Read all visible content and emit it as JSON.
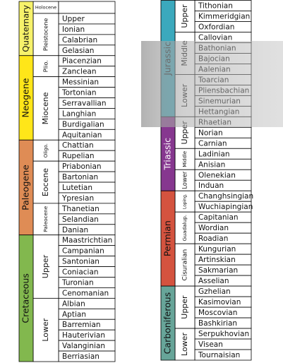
{
  "left": {
    "periods": [
      {
        "name": "Quaternary",
        "color": "#f7f26b",
        "epochs": [
          {
            "name": "Holocene",
            "stages": []
          },
          {
            "name": "Pleistocene",
            "stages": [
              "Upper",
              "Ionian",
              "Calabrian",
              "Gelasian"
            ]
          }
        ]
      },
      {
        "name": "Neogene",
        "color": "#ffe619",
        "epochs": [
          {
            "name": "Plio.",
            "stages": [
              "Piacenzian",
              "Zanclean"
            ]
          },
          {
            "name": "Miocene",
            "stages": [
              "Messinian",
              "Tortonian",
              "Serravallian",
              "Langhian",
              "Burdigalian",
              "Aquitanian"
            ]
          }
        ]
      },
      {
        "name": "Paleogene",
        "color": "#df8c55",
        "epochs": [
          {
            "name": "Oligo.",
            "stages": [
              "Chattian",
              "Rupelian"
            ]
          },
          {
            "name": "Eocene",
            "stages": [
              "Priabonian",
              "Bartonian",
              "Lutetian",
              "Ypresian"
            ]
          },
          {
            "name": "Paleocene",
            "stages": [
              "Thanetian",
              "Selandian",
              "Danian"
            ]
          }
        ]
      },
      {
        "name": "Cretaceous",
        "color": "#82b84e",
        "epochs": [
          {
            "name": "Upper",
            "stages": [
              "Maastrichtian",
              "Campanian",
              "Santonian",
              "Coniacian",
              "Turonian",
              "Cenomanian"
            ]
          },
          {
            "name": "Lower",
            "stages": [
              "Albian",
              "Aptian",
              "Barremian",
              "Hauterivian",
              "Valanginian",
              "Berriasian"
            ]
          }
        ]
      }
    ]
  },
  "right": {
    "periods": [
      {
        "name": "Jurassic",
        "color": "#3ba9bd",
        "epochs": [
          {
            "name": "Upper",
            "stages": [
              "Tithonian",
              "Kimmeridgian",
              "Oxfordian"
            ]
          },
          {
            "name": "Middle",
            "stages": [
              "Callovian",
              "Bathonian",
              "Bajocian",
              "Aalenian"
            ]
          },
          {
            "name": "Lower",
            "stages": [
              "Toarcian",
              "Pliensbachian",
              "Sinemurian",
              "Hettangian"
            ]
          }
        ]
      },
      {
        "name": "Triassic",
        "color": "#86378f",
        "epochs": [
          {
            "name": "Upper",
            "stages": [
              "Rhaetian",
              "Norian",
              "Carnian"
            ]
          },
          {
            "name": "Middle",
            "stages": [
              "Ladinian",
              "Anisian"
            ]
          },
          {
            "name": "Lower",
            "stages": [
              "Olenekian",
              "Induan"
            ]
          }
        ]
      },
      {
        "name": "Permian",
        "color": "#d4533f",
        "epochs": [
          {
            "name": "Loping.",
            "stages": [
              "Changhsingian",
              "Wuchiapingian"
            ]
          },
          {
            "name": "Guadalup.",
            "stages": [
              "Capitanian",
              "Wordian",
              "Roadian"
            ]
          },
          {
            "name": "Cisuralian",
            "stages": [
              "Kungurian",
              "Artinskian",
              "Sakmarian",
              "Asselian"
            ]
          }
        ]
      },
      {
        "name": "Carboniferous",
        "color": "#67a599",
        "epochs": [
          {
            "name": "Upper",
            "stages": [
              "Gzhelian",
              "Kasimovian",
              "Moscovian",
              "Bashkirian"
            ]
          },
          {
            "name": "Lower",
            "stages": [
              "Serpukhovian",
              "Visean",
              "Tournaisian"
            ]
          }
        ]
      }
    ]
  }
}
